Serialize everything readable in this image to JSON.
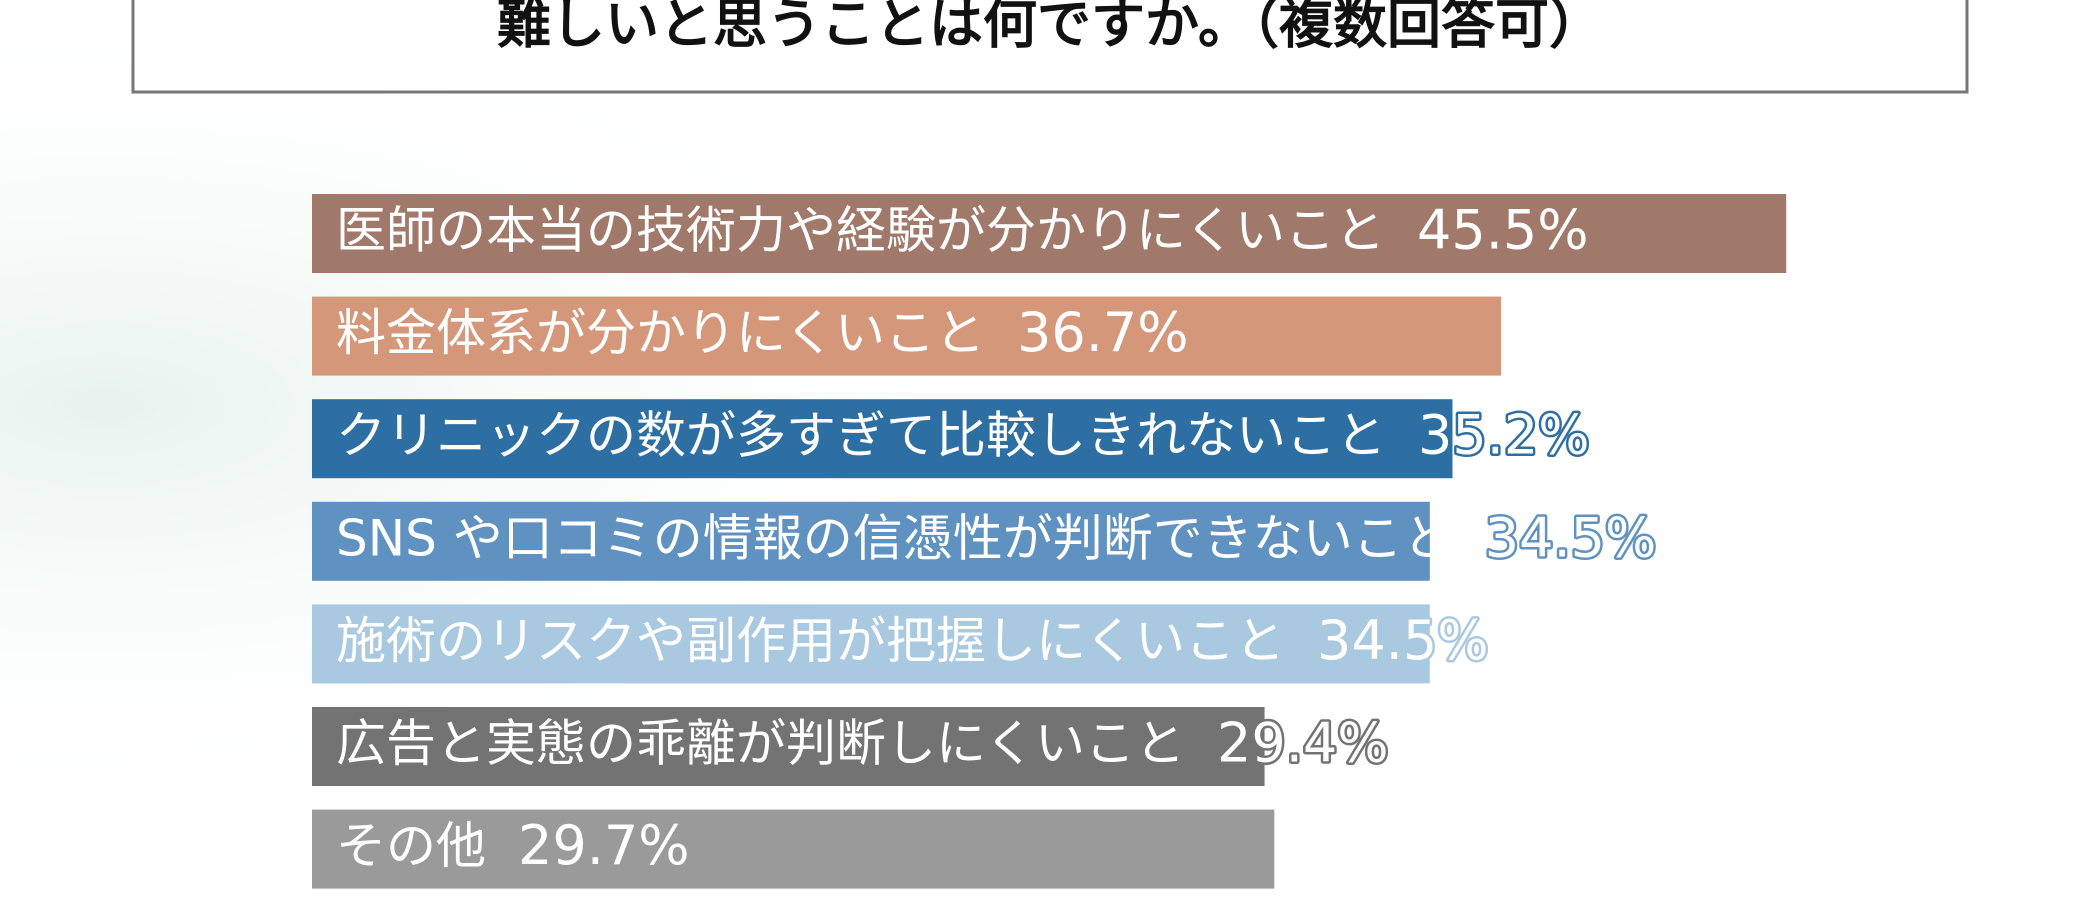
{
  "chart_data": {
    "type": "barh",
    "title": "難しいと思うことは何ですか。（複数回答可）",
    "categories": [
      "医師の本当の技術力や経験が分かりにくいこと",
      "料金体系が分かりにくいこと",
      "クリニックの数が多すぎて比較しきれないこと",
      "SNS や口コミの情報の信憑性が判断できないこと",
      "施術のリスクや副作用が把握しにくいこと",
      "広告と実態の乖離が判断しにくいこと",
      "その他"
    ],
    "values": [
      45.5,
      36.7,
      35.2,
      34.5,
      34.5,
      29.4,
      29.7
    ],
    "value_labels": [
      "45.5%",
      "36.7%",
      "35.2%",
      "34.5%",
      "34.5%",
      "29.4%",
      "29.7%"
    ],
    "colors": [
      "#a0796b",
      "#d4977a",
      "#2e6fa3",
      "#5f92c0",
      "#a9c9e1",
      "#737373",
      "#9a9a9a"
    ]
  }
}
